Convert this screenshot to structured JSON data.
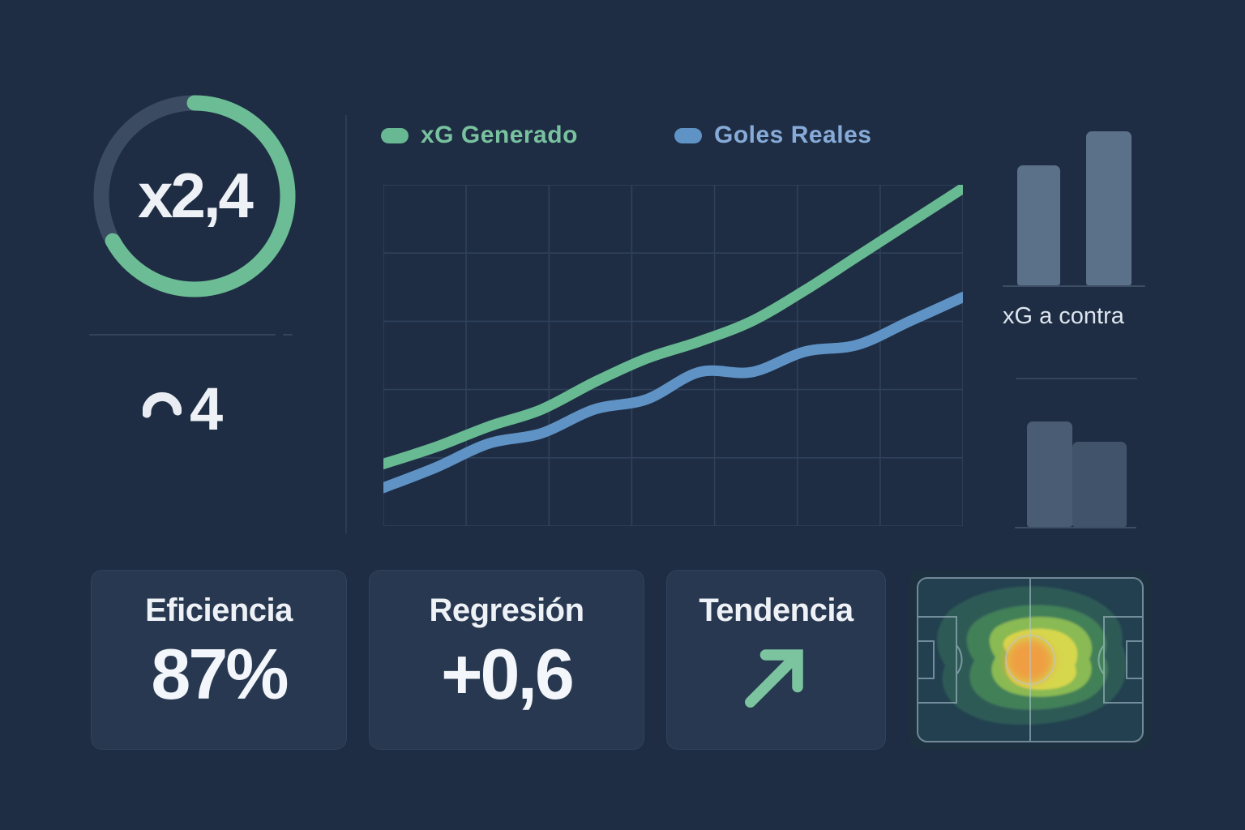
{
  "theme": {
    "background": "#1e2d43",
    "card_background": "#273850",
    "grid_color": "#2f415b",
    "divider_color": "#33445c",
    "text_primary": "#eef2f7",
    "green": "#68ba92",
    "blue": "#5f93c6",
    "slate_bar": "#5b7089",
    "ring_track": "#3b4b61"
  },
  "ring": {
    "value": "x2,4",
    "progress": 0.67,
    "color": "#6cbd95"
  },
  "partial_stat": {
    "value": "4"
  },
  "legend": [
    {
      "label": "xG Generado",
      "swatch": "#68b893",
      "text_color": "#79c2a0"
    },
    {
      "label": "Goles Reales",
      "swatch": "#6093c5",
      "text_color": "#87abd9"
    }
  ],
  "chart_data": [
    {
      "type": "line",
      "title": "",
      "xlabel": "",
      "ylabel": "",
      "x": [
        1,
        2,
        3,
        4,
        5,
        6,
        7,
        8,
        9,
        10,
        11,
        12
      ],
      "ylim": [
        0,
        10
      ],
      "grid": {
        "cols": 7,
        "rows": 5,
        "visible": true
      },
      "legend_position": "top-left",
      "series": [
        {
          "name": "xG Generado",
          "color": "#68ba92",
          "values": [
            1.8,
            2.3,
            2.9,
            3.4,
            4.2,
            4.9,
            5.4,
            6.0,
            6.9,
            7.9,
            8.9,
            9.9
          ]
        },
        {
          "name": "Goles Reales",
          "color": "#5f93c6",
          "values": [
            1.1,
            1.7,
            2.4,
            2.7,
            3.4,
            3.7,
            4.5,
            4.5,
            5.1,
            5.3,
            6.0,
            6.7
          ]
        }
      ]
    },
    {
      "type": "bar",
      "title": "xG a contra",
      "categories": [
        "",
        ""
      ],
      "values": [
        1.48,
        1.9
      ],
      "ylim": [
        0,
        2.2
      ],
      "bar_color": "#5b7089"
    },
    {
      "type": "bar",
      "title": "",
      "categories": [
        "",
        ""
      ],
      "values": [
        1.3,
        1.05
      ],
      "ylim": [
        0,
        2.2
      ],
      "bar_colors": [
        "#4a5c74",
        "#41536a"
      ]
    }
  ],
  "cards": [
    {
      "title": "Eficiencia",
      "value": "87%"
    },
    {
      "title": "Regresión",
      "value": "+0,6"
    },
    {
      "title": "Tendencia",
      "value_icon": "trend-up-arrow",
      "icon_color": "#7cc4a0"
    }
  ],
  "heatmap": {
    "label": "pitch-heatmap",
    "levels": [
      "#2d5a57",
      "#428059",
      "#8aba52",
      "#d6d74e",
      "#ef9e43"
    ],
    "pitch_line_color": "#b6cad9",
    "pitch_fill": "#22404f"
  }
}
